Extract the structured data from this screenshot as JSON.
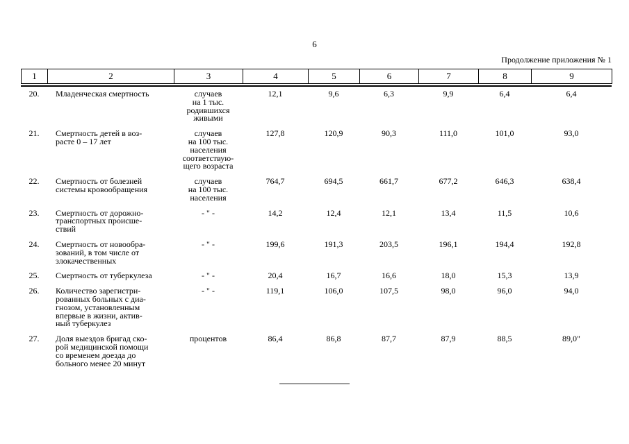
{
  "page": {
    "number": "6",
    "continuation": "Продолжение приложения № 1"
  },
  "table": {
    "header": [
      "1",
      "2",
      "3",
      "4",
      "5",
      "6",
      "7",
      "8",
      "9"
    ],
    "rows": [
      {
        "num": "20.",
        "name": "Младенческая смертность",
        "unit": "случаев\nна 1 тыс.\nродившихся\nживыми",
        "values": [
          "12,1",
          "9,6",
          "6,3",
          "9,9",
          "6,4",
          "6,4"
        ]
      },
      {
        "num": "21.",
        "name": "Смертность детей в воз-\nрасте 0 – 17 лет",
        "unit": "случаев\nна 100 тыс.\nнаселения\nсоответствую-\nщего возраста",
        "values": [
          "127,8",
          "120,9",
          "90,3",
          "111,0",
          "101,0",
          "93,0"
        ]
      },
      {
        "num": "22.",
        "name": "Смертность от болезней\nсистемы кровообращения",
        "unit": "случаев\nна 100 тыс.\nнаселения",
        "values": [
          "764,7",
          "694,5",
          "661,7",
          "677,2",
          "646,3",
          "638,4"
        ]
      },
      {
        "num": "23.",
        "name": "Смертность от дорожно-\nтранспортных происше-\nствий",
        "unit": "- \" -",
        "values": [
          "14,2",
          "12,4",
          "12,1",
          "13,4",
          "11,5",
          "10,6"
        ]
      },
      {
        "num": "24.",
        "name": "Смертность от новообра-\nзований, в том числе от\nзлокачественных",
        "unit": "- \" -",
        "values": [
          "199,6",
          "191,3",
          "203,5",
          "196,1",
          "194,4",
          "192,8"
        ]
      },
      {
        "num": "25.",
        "name": "Смертность от туберкулеза",
        "unit": "- \" -",
        "values": [
          "20,4",
          "16,7",
          "16,6",
          "18,0",
          "15,3",
          "13,9"
        ]
      },
      {
        "num": "26.",
        "name": "Количество зарегистри-\nрованных больных с диа-\nгнозом, установленным\nвпервые в жизни, актив-\nный туберкулез",
        "unit": "- \" -",
        "values": [
          "119,1",
          "106,0",
          "107,5",
          "98,0",
          "96,0",
          "94,0"
        ]
      },
      {
        "num": "27.",
        "name": "Доля выездов бригад ско-\nрой медицинской помощи\nсо временем доезда до\nбольного менее 20 минут",
        "unit": "процентов",
        "values": [
          "86,4",
          "86,8",
          "87,7",
          "87,9",
          "88,5",
          "89,0\""
        ]
      }
    ]
  }
}
